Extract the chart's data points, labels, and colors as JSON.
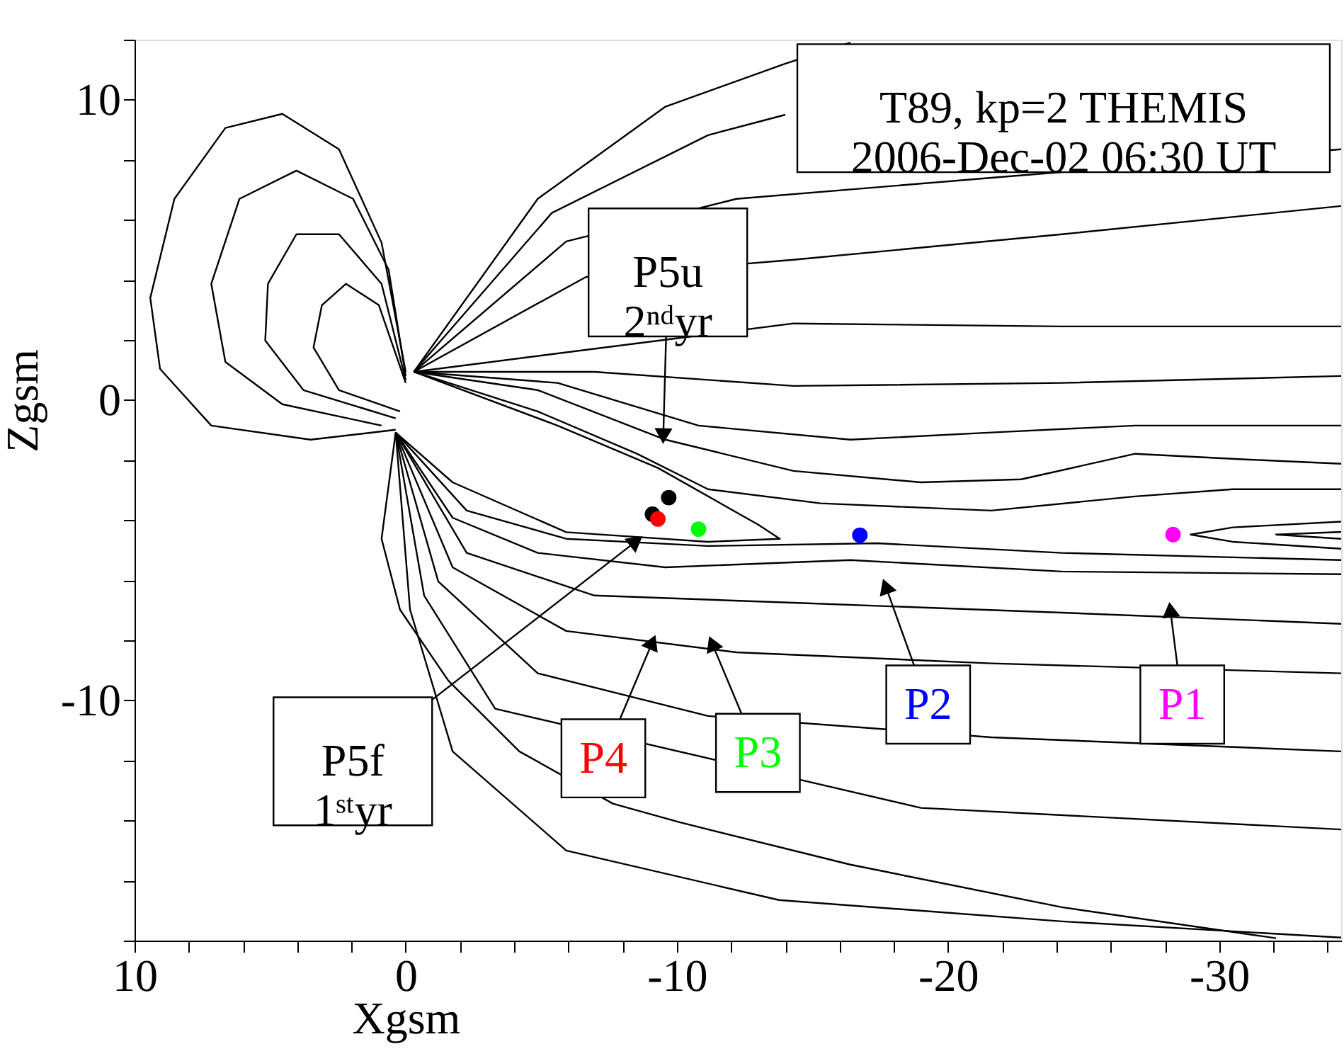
{
  "chart_data": {
    "type": "line",
    "xlabel": "Xgsm",
    "ylabel": "Zgsm",
    "xlim": [
      10,
      -34.5
    ],
    "ylim": [
      -18,
      12
    ],
    "xticks": [
      10,
      {
        "value": 8,
        "label": null
      },
      {
        "value": 6,
        "label": null
      },
      {
        "value": 4,
        "label": null
      },
      {
        "value": 2,
        "label": null
      },
      0,
      {
        "value": -2,
        "label": null
      },
      {
        "value": -4,
        "label": null
      },
      {
        "value": -6,
        "label": null
      },
      {
        "value": -8,
        "label": null
      },
      -10,
      {
        "value": -12,
        "label": null
      },
      {
        "value": -14,
        "label": null
      },
      {
        "value": -16,
        "label": null
      },
      {
        "value": -18,
        "label": null
      },
      -20,
      {
        "value": -22,
        "label": null
      },
      {
        "value": -24,
        "label": null
      },
      {
        "value": -26,
        "label": null
      },
      {
        "value": -28,
        "label": null
      },
      -30,
      {
        "value": -32,
        "label": null
      },
      {
        "value": -34,
        "label": null
      }
    ],
    "yticks": [
      {
        "value": 12,
        "label": null
      },
      10,
      {
        "value": 8,
        "label": null
      },
      {
        "value": 6,
        "label": null
      },
      {
        "value": 4,
        "label": null
      },
      {
        "value": 2,
        "label": null
      },
      0,
      {
        "value": -2,
        "label": null
      },
      {
        "value": -4,
        "label": null
      },
      {
        "value": -6,
        "label": null
      },
      {
        "value": -8,
        "label": null
      },
      -10,
      {
        "value": -12,
        "label": null
      },
      {
        "value": -14,
        "label": null
      },
      {
        "value": -16,
        "label": null
      },
      {
        "value": -18,
        "label": null
      }
    ],
    "grid": false,
    "series": [
      {
        "color": "#000000",
        "x": [
          0,
          0.89,
          2.46,
          4.55,
          6.65,
          8.53,
          9.42,
          9.06,
          7.17,
          3.51,
          0.37
        ],
        "values": [
          0.94,
          5.24,
          8.35,
          9.53,
          9.06,
          6.7,
          3.4,
          1.04,
          -0.85,
          -1.32,
          -0.99
        ]
      },
      {
        "color": "#000000",
        "x": [
          0,
          0.63,
          1.94,
          4.03,
          6.13,
          7.17,
          6.65,
          4.55,
          0.89
        ],
        "values": [
          0.8,
          4.34,
          6.7,
          7.64,
          6.7,
          3.87,
          1.27,
          -0.14,
          -0.85
        ]
      },
      {
        "color": "#000000",
        "x": [
          0,
          0.89,
          2.46,
          4.03,
          5.08,
          5.18,
          3.77,
          0.37
        ],
        "values": [
          0.66,
          3.87,
          5.52,
          5.52,
          3.87,
          1.98,
          0.33,
          -0.61
        ]
      },
      {
        "color": "#000000",
        "x": [
          0,
          0.99,
          2.2,
          3.09,
          3.4,
          2.46,
          0.21
        ],
        "values": [
          0.57,
          3.16,
          3.87,
          3.16,
          1.75,
          0.33,
          -0.38
        ]
      },
      {
        "color": "#000000",
        "x": [
          -0.3,
          -4.87,
          -9.58,
          -14.0,
          -16.4
        ],
        "values": [
          0.94,
          6.7,
          9.77,
          11.2,
          11.9
        ]
      },
      {
        "color": "#000000",
        "x": [
          -0.3,
          -5.39,
          -11.15,
          -14.0
        ],
        "values": [
          0.94,
          6.23,
          8.82,
          9.5
        ]
      },
      {
        "color": "#000000",
        "x": [
          -0.3,
          -5.92,
          -12.2,
          -21.6,
          -34.5
        ],
        "values": [
          0.94,
          5.28,
          6.7,
          7.4,
          8.35
        ]
      },
      {
        "color": "#000000",
        "x": [
          -0.3,
          -6.65,
          -14.3,
          -24.2,
          -34.5
        ],
        "values": [
          0.94,
          4.1,
          4.67,
          5.52,
          6.46
        ]
      },
      {
        "color": "#000000",
        "x": [
          -0.3,
          -14.3,
          -24.2,
          -34.5
        ],
        "values": [
          0.94,
          2.55,
          2.45,
          2.45
        ]
      },
      {
        "color": "#000000",
        "x": [
          -0.3,
          -6.96,
          -14.3,
          -24.2,
          -34.5
        ],
        "values": [
          0.94,
          0.94,
          0.47,
          0.57,
          0.8
        ]
      },
      {
        "color": "#000000",
        "x": [
          -0.3,
          -5.6,
          -10.8,
          -16.4,
          -21.6,
          -26.9,
          -34.5
        ],
        "values": [
          0.94,
          0.57,
          -0.85,
          -1.32,
          -1.08,
          -0.85,
          -0.85
        ]
      },
      {
        "color": "#000000",
        "x": [
          -0.3,
          -4.87,
          -9.58,
          -14.3,
          -19.0,
          -22.7,
          -26.9,
          -31.0,
          -34.5
        ],
        "values": [
          0.94,
          0.33,
          -1.32,
          -2.36,
          -2.74,
          -2.64,
          -1.79,
          -1.98,
          -2.12
        ]
      },
      {
        "color": "#000000",
        "x": [
          -0.3,
          -4.87,
          -8.53,
          -11.15,
          -15.3,
          -21.6,
          -26.9,
          -30.5,
          -34.5
        ],
        "values": [
          0.94,
          -0.38,
          -1.79,
          -2.97,
          -3.44,
          -3.68,
          -3.21,
          -2.97,
          -2.97
        ]
      },
      {
        "color": "#000000",
        "x": [
          -0.3,
          -5.6,
          -9.3,
          -13.0,
          -13.8,
          -11.15,
          -5.92,
          -1.73,
          0.37
        ],
        "values": [
          0.94,
          -0.85,
          -2.26,
          -4.15,
          -4.62,
          -4.72,
          -4.4,
          -2.74,
          -1.08
        ]
      },
      {
        "color": "#000000",
        "x": [
          0.37,
          -2.25,
          -5.92,
          -11.15,
          -17.4,
          -24.2,
          -34.5
        ],
        "values": [
          -1.08,
          -3.68,
          -4.62,
          -4.86,
          -4.77,
          -5.09,
          -5.33
        ]
      },
      {
        "color": "#000000",
        "x": [
          0.37,
          -1.73,
          -4.87,
          -9.58,
          -16.4,
          -24.2,
          -34.5
        ],
        "values": [
          -1.08,
          -3.92,
          -5.09,
          -5.57,
          -5.33,
          -5.71,
          -5.8
        ]
      },
      {
        "color": "#000000",
        "x": [
          -34.5,
          -30.5,
          -28.95,
          -30.5,
          -34.5
        ],
        "values": [
          -4.05,
          -4.24,
          -4.48,
          -4.72,
          -4.95
        ]
      },
      {
        "color": "#000000",
        "x": [
          -34.5,
          -32.1,
          -34.5
        ],
        "values": [
          -4.39,
          -4.48,
          -4.62
        ]
      },
      {
        "color": "#000000",
        "x": [
          0.37,
          -2.25,
          -6.96,
          -14.3,
          -24.2,
          -34.5
        ],
        "values": [
          -1.08,
          -5.09,
          -6.51,
          -6.75,
          -7.08,
          -7.45
        ]
      },
      {
        "color": "#000000",
        "x": [
          0.37,
          -1.73,
          -5.92,
          -12.2,
          -21.6,
          -34.5
        ],
        "values": [
          -1.08,
          -5.57,
          -7.69,
          -8.4,
          -8.77,
          -9.1
        ]
      },
      {
        "color": "#000000",
        "x": [
          0.37,
          -1.2,
          -4.87,
          -11.15,
          -21.6,
          -34.5
        ],
        "values": [
          -1.08,
          -6.04,
          -9.1,
          -10.52,
          -11.23,
          -11.7
        ]
      },
      {
        "color": "#000000",
        "x": [
          0.37,
          -0.68,
          -3.3,
          -19.0,
          -34.5
        ],
        "values": [
          -1.08,
          -6.51,
          -10.28,
          -13.58,
          -14.3
        ]
      },
      {
        "color": "#000000",
        "x": [
          0.37,
          -0.16,
          -1.73,
          -5.92,
          -13.77,
          -24.2,
          -34.5
        ],
        "values": [
          -1.08,
          -6.98,
          -11.7,
          -15.0,
          -16.65,
          -17.36,
          -17.9
        ]
      },
      {
        "color": "#000000",
        "x": [
          0.37,
          0.89,
          0.21,
          -1.57,
          -4.19,
          -7.64,
          -10.1,
          -16.4,
          -24.2,
          -32.1
        ],
        "values": [
          -1.08,
          -4.62,
          -6.98,
          -9.34,
          -11.7,
          -13.44,
          -14.06,
          -15.47,
          -16.89,
          -17.92
        ]
      },
      {
        "type": "scatter",
        "marker": "circle",
        "color": "#000000",
        "x": [
          -9.7,
          -9.1
        ],
        "values": [
          -3.25,
          -3.8
        ]
      },
      {
        "type": "scatter",
        "marker": "circle",
        "name": "P1",
        "color": "#ff00ff",
        "x": [
          -28.3
        ],
        "values": [
          -4.48
        ]
      },
      {
        "type": "scatter",
        "marker": "circle",
        "name": "P2",
        "color": "#0000ff",
        "x": [
          -16.75
        ],
        "values": [
          -4.5
        ]
      },
      {
        "type": "scatter",
        "marker": "circle",
        "name": "P3",
        "color": "#00ff00",
        "x": [
          -10.8
        ],
        "values": [
          -4.3
        ]
      },
      {
        "type": "scatter",
        "marker": "circle",
        "name": "P4",
        "color": "#ff0000",
        "x": [
          -9.3
        ],
        "values": [
          -3.96
        ]
      }
    ],
    "annotations": [
      "T89, kp=2 THEMIS\n2006-Dec-02 06:30 UT",
      {
        "text": "P5u\n2ⁿᵈyr",
        "x": -9.5,
        "y": -1.2
      },
      {
        "text": "P5f\n1ˢᵗyr",
        "x": -8.5,
        "y": -4.7
      }
    ]
  }
}
